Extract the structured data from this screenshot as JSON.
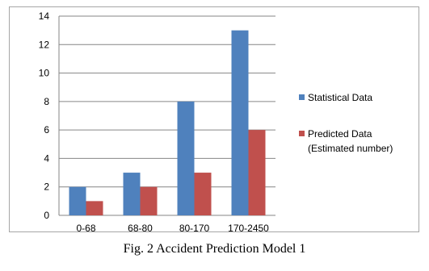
{
  "caption": "Fig. 2 Accident Prediction Model 1",
  "chart_data": {
    "type": "bar",
    "categories": [
      "0-68",
      "68-80",
      "80-170",
      "170-2450"
    ],
    "series": [
      {
        "name": "Statistical Data",
        "values": [
          2,
          3,
          8,
          13
        ],
        "color": "#4f81bd"
      },
      {
        "name": "Predicted Data (Estimated number)",
        "values": [
          1,
          2,
          3,
          6
        ],
        "color": "#c0504d"
      }
    ],
    "title": "",
    "xlabel": "",
    "ylabel": "",
    "ylim": [
      0,
      14
    ],
    "yticks": [
      0,
      2,
      4,
      6,
      8,
      10,
      12,
      14
    ],
    "grid": true,
    "legend_position": "right",
    "legend_lines": [
      [
        "Statistical Data"
      ],
      [
        "Predicted Data",
        "(Estimated number)"
      ]
    ]
  }
}
